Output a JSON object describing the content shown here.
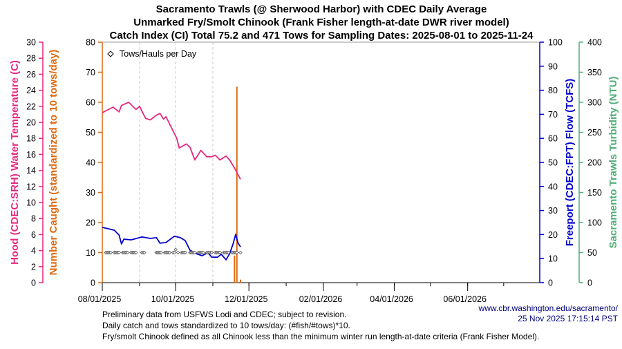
{
  "chart_data": {
    "type": "line",
    "title": [
      "Sacramento Trawls (@ Sherwood Harbor) with CDEC Daily Average",
      "Unmarked Fry/Smolt Chinook (Frank Fisher length-at-date DWR river model)",
      "Catch Index (CI) Total 75.2 and 471 Tows for Sampling Dates: 2025-08-01 to 2025-11-24"
    ],
    "x_range": [
      "2025-08-01",
      "2026-07-31"
    ],
    "x_ticks": [
      "2025-08-01",
      "2025-10-01",
      "2025-12-01",
      "2026-02-01",
      "2026-04-01",
      "2026-06-01"
    ],
    "x_tick_labels": [
      "08/01/2025",
      "10/01/2025",
      "12/01/2025",
      "02/01/2026",
      "04/01/2026",
      "06/01/2026"
    ],
    "gridlines_x": [
      "2025-09-01",
      "2025-10-01",
      "2025-11-01"
    ],
    "axes": {
      "temperature": {
        "label": "Hood (CDEC:SRH) Water Temperature (C)",
        "range": [
          0,
          30
        ],
        "step": 2,
        "color": "#e8287f",
        "side": "left"
      },
      "catch": {
        "label": "Number Caught (standardized to 10 tows/day)",
        "range": [
          0,
          80
        ],
        "step": 10,
        "color": "#de6a10",
        "side": "left"
      },
      "flow": {
        "label": "Freeport (CDEC:FPT) Flow (TCFS)",
        "range": [
          0,
          100
        ],
        "step": 10,
        "color": "#0000cc",
        "side": "right"
      },
      "turbidity": {
        "label": "Sacramento Trawls Turbidity (NTU)",
        "range": [
          0,
          400
        ],
        "step": 50,
        "color": "#4fae77",
        "side": "right"
      }
    },
    "legend": {
      "label": "Tows/Hauls per Day",
      "placement": "top-left",
      "marker": "diamond"
    },
    "series": [
      {
        "axis": "temperature",
        "points": [
          [
            "2025-08-01",
            21.2
          ],
          [
            "2025-08-10",
            21.9
          ],
          [
            "2025-08-15",
            21.3
          ],
          [
            "2025-08-17",
            22.1
          ],
          [
            "2025-08-23",
            22.5
          ],
          [
            "2025-08-29",
            21.6
          ],
          [
            "2025-09-01",
            22.0
          ],
          [
            "2025-09-06",
            20.5
          ],
          [
            "2025-09-10",
            20.3
          ],
          [
            "2025-09-15",
            20.9
          ],
          [
            "2025-09-18",
            21.1
          ],
          [
            "2025-09-21",
            20.4
          ],
          [
            "2025-09-23",
            20.7
          ],
          [
            "2025-09-27",
            19.5
          ],
          [
            "2025-10-02",
            18.0
          ],
          [
            "2025-10-04",
            16.8
          ],
          [
            "2025-10-10",
            17.3
          ],
          [
            "2025-10-13",
            16.9
          ],
          [
            "2025-10-17",
            15.3
          ],
          [
            "2025-10-22",
            16.5
          ],
          [
            "2025-10-27",
            15.7
          ],
          [
            "2025-10-31",
            15.7
          ],
          [
            "2025-11-03",
            15.9
          ],
          [
            "2025-11-07",
            15.3
          ],
          [
            "2025-11-12",
            15.8
          ],
          [
            "2025-11-15",
            15.3
          ],
          [
            "2025-11-19",
            14.3
          ],
          [
            "2025-11-24",
            12.9
          ]
        ]
      },
      {
        "axis": "flow",
        "points": [
          [
            "2025-08-01",
            23.0
          ],
          [
            "2025-08-06",
            22.4
          ],
          [
            "2025-08-11",
            21.8
          ],
          [
            "2025-08-15",
            19.8
          ],
          [
            "2025-08-17",
            16.1
          ],
          [
            "2025-08-19",
            18.1
          ],
          [
            "2025-08-25",
            17.8
          ],
          [
            "2025-09-03",
            19.0
          ],
          [
            "2025-09-10",
            18.4
          ],
          [
            "2025-09-15",
            18.7
          ],
          [
            "2025-09-18",
            16.4
          ],
          [
            "2025-09-23",
            16.7
          ],
          [
            "2025-09-30",
            19.3
          ],
          [
            "2025-10-05",
            18.7
          ],
          [
            "2025-10-09",
            17.5
          ],
          [
            "2025-10-13",
            13.5
          ],
          [
            "2025-10-18",
            12.1
          ],
          [
            "2025-10-23",
            11.2
          ],
          [
            "2025-10-28",
            12.4
          ],
          [
            "2025-10-31",
            10.6
          ],
          [
            "2025-11-05",
            10.6
          ],
          [
            "2025-11-08",
            11.8
          ],
          [
            "2025-11-12",
            9.5
          ],
          [
            "2025-11-15",
            12.1
          ],
          [
            "2025-11-18",
            16.4
          ],
          [
            "2025-11-20",
            20.1
          ],
          [
            "2025-11-22",
            16.4
          ],
          [
            "2025-11-24",
            14.9
          ]
        ]
      }
    ],
    "catch_bars": [
      [
        "2025-11-19",
        9.0
      ],
      [
        "2025-11-21",
        65.2
      ],
      [
        "2025-11-24",
        1.0
      ]
    ],
    "tows_per_day": {
      "weekday_ranges": [
        [
          "2025-08-04",
          "2025-08-15",
          10
        ],
        [
          "2025-08-18",
          "2025-08-29",
          10
        ],
        [
          "2025-09-03",
          "2025-09-05",
          10
        ],
        [
          "2025-09-15",
          "2025-09-30",
          10
        ],
        [
          "2025-10-03",
          "2025-10-09",
          10
        ],
        [
          "2025-10-13",
          "2025-11-24",
          10
        ]
      ],
      "points": [
        [
          "2025-10-01",
          11
        ]
      ]
    }
  },
  "footer": {
    "notes": [
      "Preliminary data from USFWS Lodi and CDEC; subject to revision.",
      "Daily catch and tows standardized to 10 tows/day: (#fish/#tows)*10.",
      "Fry/smolt Chinook defined as all Chinook less than the minimum winter run length-at-date criteria (Frank Fisher Model)."
    ],
    "url": "www.cbr.washington.edu/sacramento/",
    "timestamp": "25 Nov 2025 17:15:14 PST"
  }
}
